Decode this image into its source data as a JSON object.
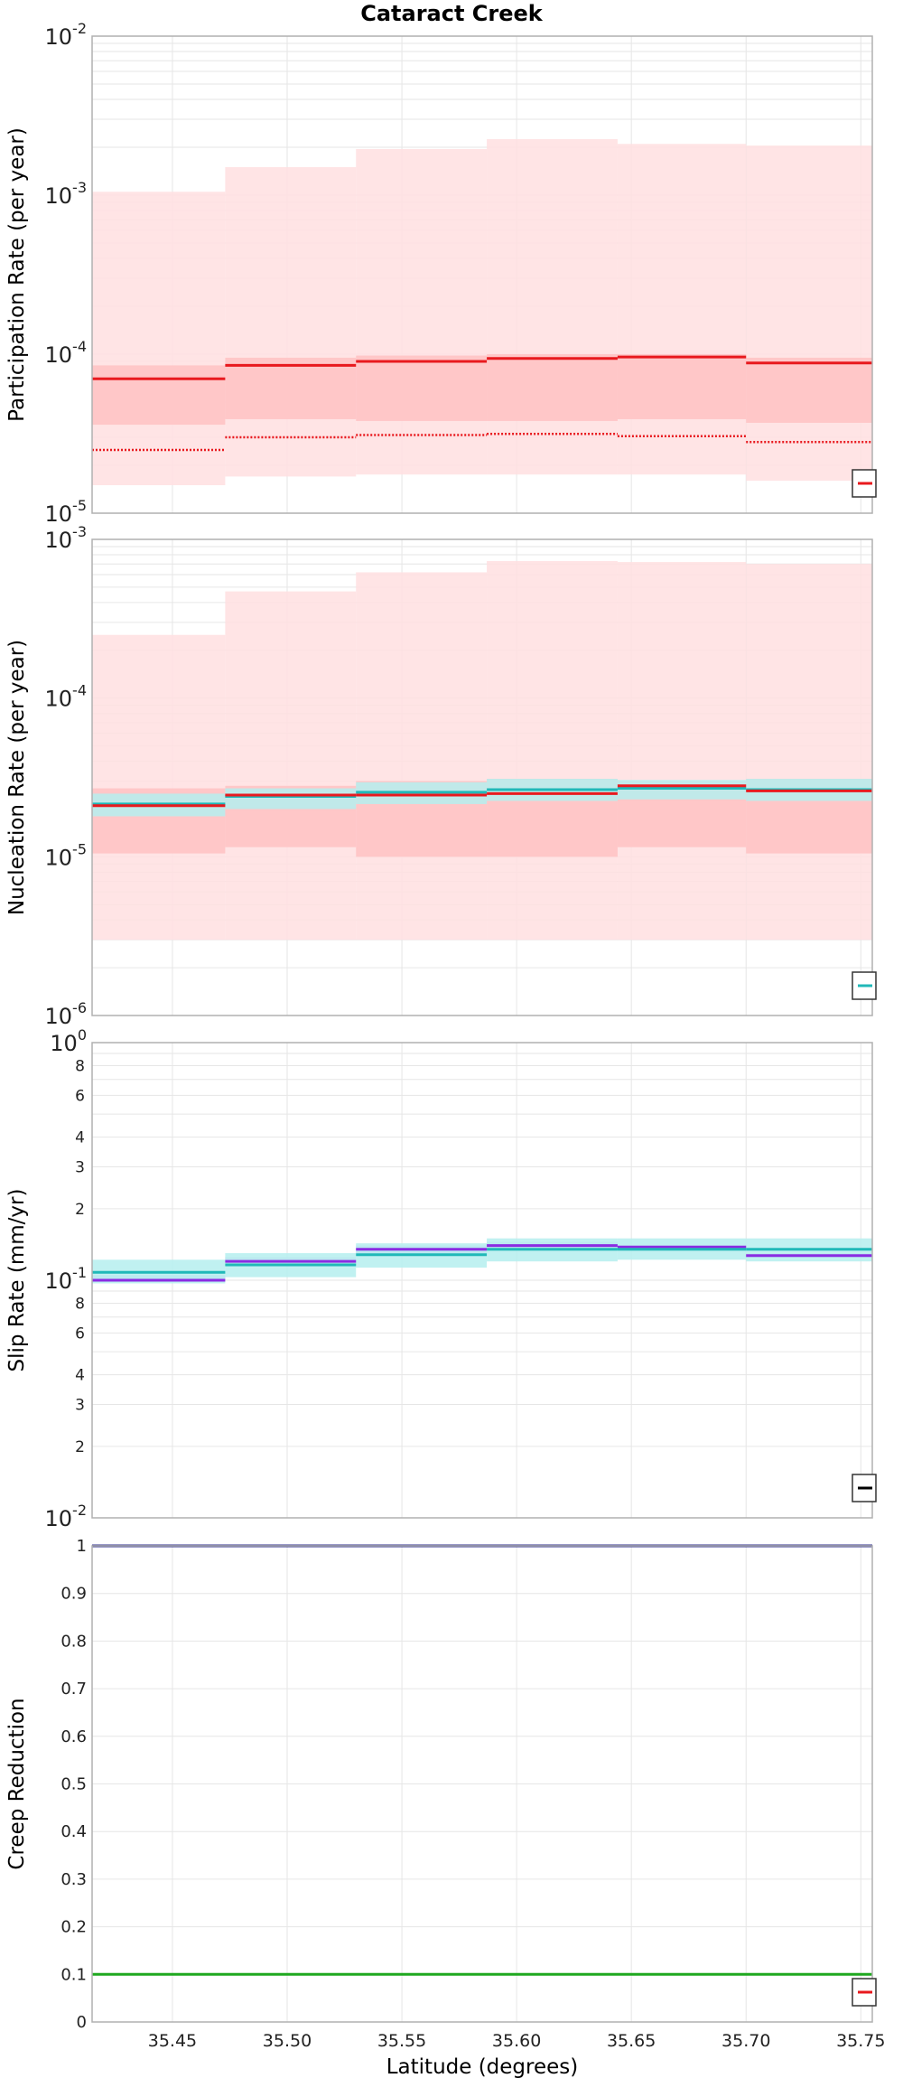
{
  "title": "Cataract Creek",
  "colors": {
    "red": "#e8191e",
    "red_band_light": "#ffdfe0",
    "red_band_dark": "#ffc2c3",
    "cyan": "#20b8b8",
    "cyan_band": "#b5eeee",
    "purple": "#8a2be2",
    "purple_band": "#d8c2f4",
    "navy": "#2c2c8c",
    "green": "#1fa81f",
    "grid": "#e6e6e6",
    "frame": "#b0b0b0"
  },
  "chart_data": [
    {
      "type": "line",
      "name": "participation-rate",
      "ylabel": "Participation Rate (per year)",
      "xlabel": "",
      "yscale": "log",
      "xlim": [
        35.415,
        35.755
      ],
      "ylim": [
        1e-05,
        0.01
      ],
      "grid": true,
      "legend": "bottom-right",
      "yticks": [
        {
          "base": "10",
          "exp": "-5",
          "value": 1e-05
        },
        {
          "base": "10",
          "exp": "-4",
          "value": 0.0001
        },
        {
          "base": "10",
          "exp": "-3",
          "value": 0.001
        },
        {
          "base": "10",
          "exp": "-2",
          "value": 0.01
        }
      ],
      "x_edges": [
        35.415,
        35.473,
        35.53,
        35.587,
        35.644,
        35.7,
        35.755
      ],
      "bands": [
        {
          "color": "red_band_light",
          "lower": [
            1.5e-05,
            1.7e-05,
            1.75e-05,
            1.75e-05,
            1.75e-05,
            1.6e-05
          ],
          "upper": [
            0.00105,
            0.0015,
            0.00195,
            0.00225,
            0.0021,
            0.00205
          ]
        },
        {
          "color": "red_band_dark",
          "lower": [
            3.6e-05,
            3.9e-05,
            3.8e-05,
            3.8e-05,
            3.9e-05,
            3.7e-05
          ],
          "upper": [
            8.5e-05,
            9.5e-05,
            9.8e-05,
            0.0001,
            0.0001,
            9.5e-05
          ]
        }
      ],
      "lines": [
        {
          "color": "red",
          "style": "solid",
          "values": [
            7e-05,
            8.5e-05,
            9e-05,
            9.4e-05,
            9.6e-05,
            8.8e-05
          ]
        },
        {
          "color": "red",
          "style": "dotted",
          "values": [
            2.5e-05,
            3e-05,
            3.1e-05,
            3.15e-05,
            3.05e-05,
            2.8e-05
          ]
        }
      ],
      "legend_swatch": "red"
    },
    {
      "type": "line",
      "name": "nucleation-rate",
      "ylabel": "Nucleation Rate (per year)",
      "xlabel": "",
      "yscale": "log",
      "xlim": [
        35.415,
        35.755
      ],
      "ylim": [
        1e-06,
        0.001
      ],
      "grid": true,
      "legend": "bottom-right",
      "yticks": [
        {
          "base": "10",
          "exp": "-6",
          "value": 1e-06
        },
        {
          "base": "10",
          "exp": "-5",
          "value": 1e-05
        },
        {
          "base": "10",
          "exp": "-4",
          "value": 0.0001
        },
        {
          "base": "10",
          "exp": "-3",
          "value": 0.001
        }
      ],
      "x_edges": [
        35.415,
        35.473,
        35.53,
        35.587,
        35.644,
        35.7,
        35.755
      ],
      "bands": [
        {
          "color": "red_band_light",
          "lower": [
            3e-06,
            3e-06,
            3e-06,
            3e-06,
            3e-06,
            3e-06
          ],
          "upper": [
            0.00025,
            0.00047,
            0.00062,
            0.00073,
            0.00072,
            0.0007
          ]
        },
        {
          "color": "red_band_dark",
          "lower": [
            1.05e-05,
            1.15e-05,
            1e-05,
            1e-05,
            1.15e-05,
            1.05e-05
          ],
          "upper": [
            2.7e-05,
            2.8e-05,
            3e-05,
            3.1e-05,
            3e-05,
            3.1e-05
          ]
        },
        {
          "color": "cyan_band",
          "lower": [
            1.8e-05,
            2e-05,
            2.15e-05,
            2.25e-05,
            2.3e-05,
            2.25e-05
          ],
          "upper": [
            2.5e-05,
            2.7e-05,
            2.95e-05,
            3.1e-05,
            3.05e-05,
            3.1e-05
          ]
        }
      ],
      "lines": [
        {
          "color": "cyan",
          "style": "solid",
          "values": [
            2.15e-05,
            2.4e-05,
            2.55e-05,
            2.65e-05,
            2.7e-05,
            2.65e-05
          ]
        },
        {
          "color": "red",
          "style": "solid",
          "values": [
            2.1e-05,
            2.45e-05,
            2.45e-05,
            2.5e-05,
            2.8e-05,
            2.6e-05
          ]
        }
      ],
      "legend_swatch": "cyan"
    },
    {
      "type": "line",
      "name": "slip-rate",
      "ylabel": "Slip Rate (mm/yr)",
      "xlabel": "",
      "yscale": "log",
      "xlim": [
        35.415,
        35.755
      ],
      "ylim": [
        0.01,
        1.0
      ],
      "grid": true,
      "legend": "bottom-right",
      "yticks": [
        {
          "base": "10",
          "exp": "-2",
          "value": 0.01
        },
        {
          "label": "2",
          "value": 0.02
        },
        {
          "label": "3",
          "value": 0.03
        },
        {
          "label": "4",
          "value": 0.04
        },
        {
          "label": "6",
          "value": 0.06
        },
        {
          "label": "8",
          "value": 0.08
        },
        {
          "base": "10",
          "exp": "-1",
          "value": 0.1
        },
        {
          "label": "2",
          "value": 0.2
        },
        {
          "label": "3",
          "value": 0.3
        },
        {
          "label": "4",
          "value": 0.4
        },
        {
          "label": "6",
          "value": 0.6
        },
        {
          "label": "8",
          "value": 0.8
        },
        {
          "base": "10",
          "exp": "0",
          "value": 1.0
        }
      ],
      "x_edges": [
        35.415,
        35.473,
        35.53,
        35.587,
        35.644,
        35.7,
        35.755
      ],
      "bands": [
        {
          "color": "purple_band",
          "lower": [
            0.1,
            0.115,
            0.13,
            0.135,
            0.135,
            0.125
          ],
          "upper": [
            0.105,
            0.125,
            0.14,
            0.145,
            0.14,
            0.13
          ]
        },
        {
          "color": "cyan_band",
          "lower": [
            0.097,
            0.103,
            0.113,
            0.12,
            0.122,
            0.12
          ],
          "upper": [
            0.122,
            0.13,
            0.143,
            0.15,
            0.15,
            0.15
          ]
        }
      ],
      "lines": [
        {
          "color": "purple",
          "style": "solid",
          "values": [
            0.1,
            0.12,
            0.135,
            0.14,
            0.138,
            0.127
          ]
        },
        {
          "color": "cyan",
          "style": "solid",
          "values": [
            0.108,
            0.116,
            0.128,
            0.135,
            0.135,
            0.135
          ]
        }
      ],
      "legend_swatch": "black"
    },
    {
      "type": "line",
      "name": "creep-reduction",
      "ylabel": "Creep Reduction",
      "xlabel": "Latitude (degrees)",
      "yscale": "linear",
      "xlim": [
        35.415,
        35.755
      ],
      "ylim": [
        0,
        1
      ],
      "grid": true,
      "legend": "bottom-right",
      "yticks": [
        {
          "label": "0",
          "value": 0
        },
        {
          "label": "0.1",
          "value": 0.1
        },
        {
          "label": "0.2",
          "value": 0.2
        },
        {
          "label": "0.3",
          "value": 0.3
        },
        {
          "label": "0.4",
          "value": 0.4
        },
        {
          "label": "0.5",
          "value": 0.5
        },
        {
          "label": "0.6",
          "value": 0.6
        },
        {
          "label": "0.7",
          "value": 0.7
        },
        {
          "label": "0.8",
          "value": 0.8
        },
        {
          "label": "0.9",
          "value": 0.9
        },
        {
          "label": "1",
          "value": 1
        }
      ],
      "xticks": [
        {
          "label": "35.45",
          "value": 35.45
        },
        {
          "label": "35.50",
          "value": 35.5
        },
        {
          "label": "35.55",
          "value": 35.55
        },
        {
          "label": "35.60",
          "value": 35.6
        },
        {
          "label": "35.65",
          "value": 35.65
        },
        {
          "label": "35.70",
          "value": 35.7
        },
        {
          "label": "35.75",
          "value": 35.75
        }
      ],
      "x_edges": [
        35.415,
        35.755
      ],
      "bands": [],
      "lines": [
        {
          "color": "navy",
          "style": "solid",
          "values": [
            1.0
          ]
        },
        {
          "color": "green",
          "style": "solid",
          "values": [
            0.1
          ]
        }
      ],
      "legend_swatch": "red"
    }
  ]
}
